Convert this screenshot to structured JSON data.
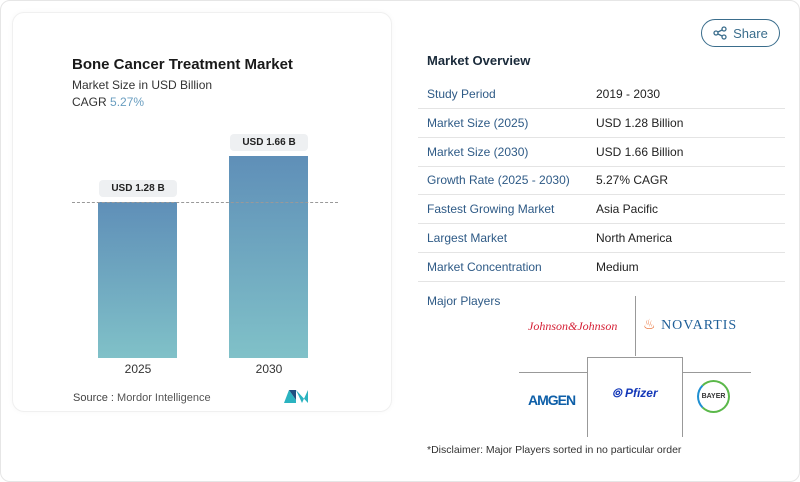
{
  "chart": {
    "title": "Bone Cancer Treatment Market",
    "subtitle": "Market Size in USD Billion",
    "cagr_label": "CAGR",
    "cagr_value": "5.27%",
    "source_label": "Source :",
    "source": "Mordor Intelligence"
  },
  "chart_data": {
    "type": "bar",
    "categories": [
      "2025",
      "2030"
    ],
    "values": [
      1.28,
      1.66
    ],
    "data_labels": [
      "USD 1.28 B",
      "USD 1.66 B"
    ],
    "title": "Bone Cancer Treatment Market",
    "ylabel": "Market Size in USD Billion",
    "ylim": [
      0,
      1.66
    ],
    "grid": false
  },
  "share": {
    "label": "Share",
    "icon": "share-icon"
  },
  "overview": {
    "title": "Market Overview",
    "rows": [
      {
        "k": "Study Period",
        "v": "2019 - 2030"
      },
      {
        "k": "Market Size (2025)",
        "v": "USD 1.28 Billion"
      },
      {
        "k": "Market Size (2030)",
        "v": "USD 1.66 Billion"
      },
      {
        "k": "Growth Rate (2025 - 2030)",
        "v": "5.27% CAGR"
      },
      {
        "k": "Fastest Growing Market",
        "v": "Asia Pacific"
      },
      {
        "k": "Largest Market",
        "v": "North America"
      },
      {
        "k": "Market Concentration",
        "v": "Medium"
      }
    ]
  },
  "players": {
    "label": "Major Players",
    "logos": [
      "Johnson&Johnson",
      "NOVARTIS",
      "AMGEN",
      "Pfizer",
      "BAYER"
    ]
  },
  "disclaimer": "*Disclaimer: Major Players sorted in no particular order",
  "colors": {
    "accent": "#2e5a86",
    "bar_top": "#5f8fb8",
    "bar_bottom": "#80c1c8"
  }
}
